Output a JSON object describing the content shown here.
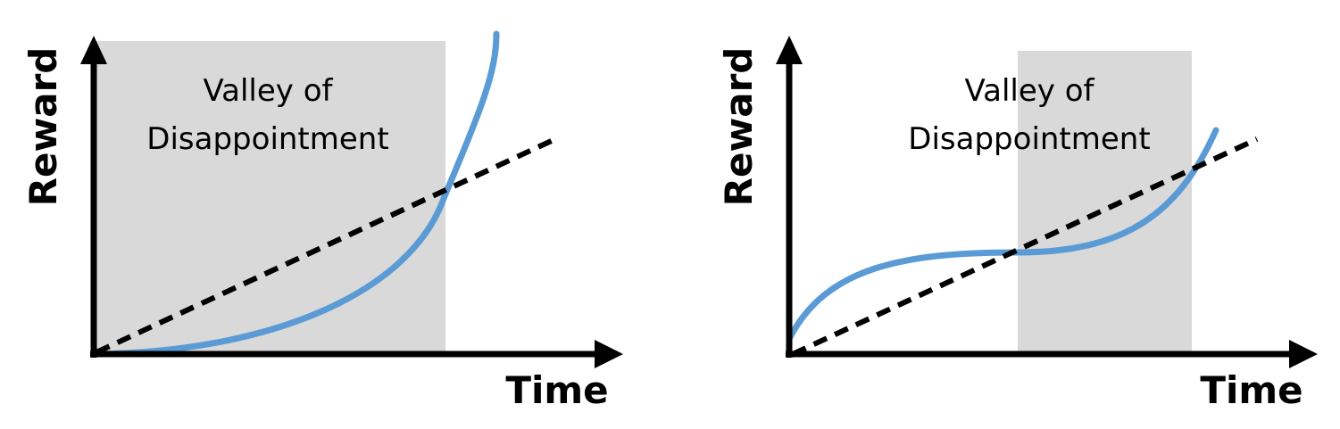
{
  "colors": {
    "region_fill": "#d9d9d9",
    "curve": "#5b9bd5",
    "trend_line": "#000000",
    "axes": "#000000"
  },
  "panels": [
    {
      "id": "left",
      "region_label_line1": "Valley of",
      "region_label_line2": "Disappointment",
      "y_axis_label": "Reward",
      "x_axis_label": "Time",
      "curve_shape": "exponential growth",
      "trend_shape": "straight dashed line"
    },
    {
      "id": "right",
      "region_label_line1": "Valley of",
      "region_label_line2": "Disappointment",
      "y_axis_label": "Reward",
      "x_axis_label": "Time",
      "curve_shape": "s-curve with plateau",
      "trend_shape": "straight dashed line"
    }
  ]
}
